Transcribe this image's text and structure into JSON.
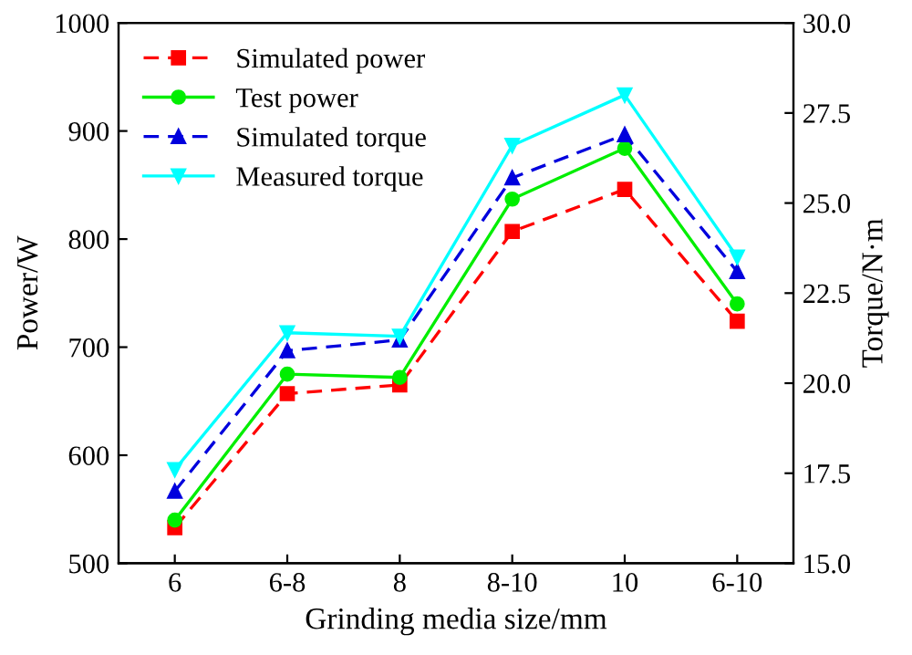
{
  "chart_data": {
    "type": "line",
    "xlabel": "Grinding media size/mm",
    "ylabel": "Power/W",
    "y2label": "Torque/N·m",
    "categories": [
      "6",
      "6-8",
      "8",
      "8-10",
      "10",
      "6-10"
    ],
    "series": [
      {
        "name": "Simulated power",
        "color": "#ff0000",
        "values": [
          533,
          657,
          665,
          807,
          846,
          724
        ],
        "marker": "square",
        "line_style": "dashed"
      },
      {
        "name": "Test power",
        "color": "#00ee00",
        "values": [
          540,
          675,
          672,
          837,
          884,
          740
        ],
        "marker": "circle",
        "line_style": "solid"
      },
      {
        "name": "Simulated torque",
        "color": "#0000dd",
        "values": [
          17.0,
          20.9,
          21.2,
          25.7,
          26.9,
          23.1
        ],
        "marker": "triangle",
        "line_style": "dashed",
        "axis": "y2"
      },
      {
        "name": "Measured torque",
        "color": "#00ffff",
        "values": [
          17.6,
          21.4,
          21.3,
          26.6,
          28.0,
          23.5
        ],
        "marker": "triangle_down",
        "line_style": "solid",
        "axis": "y2"
      }
    ],
    "ylim": [
      500,
      1000
    ],
    "yticks": [
      500,
      600,
      700,
      800,
      900,
      1000
    ],
    "y2lim": [
      15,
      30
    ],
    "y2ticks": [
      {
        "value": 15,
        "label": "15.0"
      },
      {
        "value": 17.5,
        "label": "17.5"
      },
      {
        "value": 20,
        "label": "20.0"
      },
      {
        "value": 22.5,
        "label": "22.5"
      },
      {
        "value": 25,
        "label": "25.0"
      },
      {
        "value": 27.5,
        "label": "27.5"
      },
      {
        "value": 30,
        "label": "30.0"
      }
    ],
    "legend": "top left",
    "grid": false
  }
}
